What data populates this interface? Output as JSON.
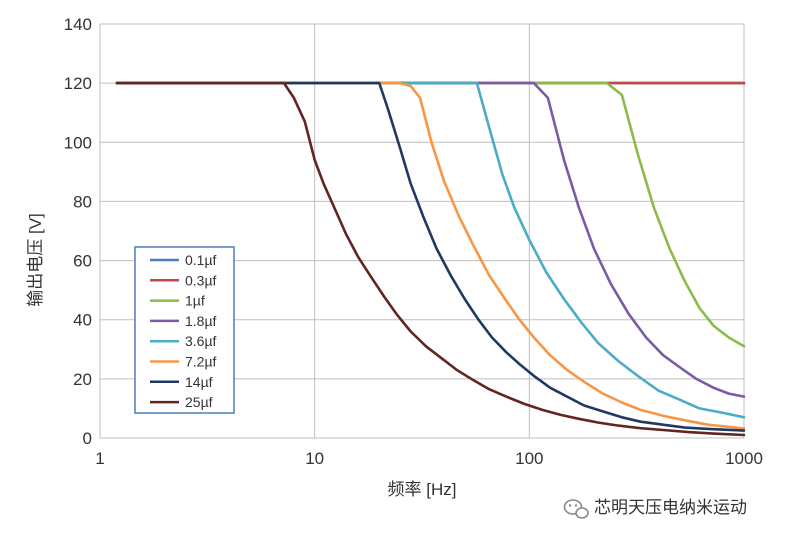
{
  "watermark": {
    "text": "芯明天压电纳米运动",
    "icon": "wechat-icon"
  },
  "chart_data": {
    "type": "line",
    "title": "",
    "xlabel": "频率 [Hz]",
    "ylabel": "输出电压 [V]",
    "x_scale": "log",
    "xlim": [
      1,
      1000
    ],
    "ylim": [
      0,
      140
    ],
    "x_ticks": [
      1,
      10,
      100,
      1000
    ],
    "x_tick_labels": [
      "1",
      "10",
      "100",
      "1000"
    ],
    "y_ticks": [
      0,
      20,
      40,
      60,
      80,
      100,
      120,
      140
    ],
    "y_tick_labels": [
      "0",
      "20",
      "40",
      "60",
      "80",
      "100",
      "120",
      "140"
    ],
    "grid": true,
    "legend_position": "bottom-left",
    "series": [
      {
        "name": "0.1µf",
        "color": "#4a7ebb",
        "points": [
          [
            1.2,
            120
          ],
          [
            1000,
            120
          ]
        ]
      },
      {
        "name": "0.3µf",
        "color": "#be4b48",
        "points": [
          [
            1.2,
            120
          ],
          [
            1000,
            120
          ]
        ]
      },
      {
        "name": "1µf",
        "color": "#8cbb49",
        "points": [
          [
            1.2,
            120
          ],
          [
            230,
            120
          ],
          [
            270,
            116
          ],
          [
            320,
            96
          ],
          [
            380,
            78
          ],
          [
            450,
            64
          ],
          [
            530,
            53
          ],
          [
            620,
            44
          ],
          [
            720,
            38
          ],
          [
            850,
            34
          ],
          [
            1000,
            31
          ]
        ]
      },
      {
        "name": "1.8µf",
        "color": "#7b5aa6",
        "points": [
          [
            1.2,
            120
          ],
          [
            105,
            120
          ],
          [
            122,
            115
          ],
          [
            145,
            94
          ],
          [
            170,
            78
          ],
          [
            200,
            64
          ],
          [
            240,
            52
          ],
          [
            290,
            42
          ],
          [
            350,
            34
          ],
          [
            420,
            28
          ],
          [
            500,
            24
          ],
          [
            600,
            20
          ],
          [
            720,
            17
          ],
          [
            850,
            15
          ],
          [
            1000,
            14
          ]
        ]
      },
      {
        "name": "3.6µf",
        "color": "#4bacc6",
        "points": [
          [
            1.2,
            120
          ],
          [
            57,
            120
          ],
          [
            65,
            105
          ],
          [
            75,
            89
          ],
          [
            85,
            78
          ],
          [
            100,
            67
          ],
          [
            120,
            56
          ],
          [
            145,
            47
          ],
          [
            175,
            39
          ],
          [
            210,
            32
          ],
          [
            260,
            26
          ],
          [
            320,
            21
          ],
          [
            400,
            16
          ],
          [
            500,
            13
          ],
          [
            620,
            10
          ],
          [
            800,
            8.5
          ],
          [
            1000,
            7
          ]
        ]
      },
      {
        "name": "7.2µf",
        "color": "#f79646",
        "points": [
          [
            1.2,
            120
          ],
          [
            25,
            120
          ],
          [
            28,
            119
          ],
          [
            31,
            115
          ],
          [
            35,
            100
          ],
          [
            40,
            87
          ],
          [
            47,
            75
          ],
          [
            55,
            65
          ],
          [
            65,
            55
          ],
          [
            77,
            47
          ],
          [
            90,
            40
          ],
          [
            105,
            34
          ],
          [
            125,
            28
          ],
          [
            150,
            23
          ],
          [
            180,
            19
          ],
          [
            220,
            15
          ],
          [
            270,
            12
          ],
          [
            330,
            9.5
          ],
          [
            420,
            7.5
          ],
          [
            530,
            6
          ],
          [
            680,
            4.5
          ],
          [
            850,
            3.8
          ],
          [
            1000,
            3.2
          ]
        ]
      },
      {
        "name": "14µf",
        "color": "#1f3864",
        "points": [
          [
            1.2,
            120
          ],
          [
            20,
            120
          ],
          [
            22,
            111
          ],
          [
            25,
            98
          ],
          [
            28,
            86
          ],
          [
            32,
            75
          ],
          [
            37,
            64
          ],
          [
            43,
            55
          ],
          [
            50,
            47
          ],
          [
            58,
            40
          ],
          [
            67,
            34
          ],
          [
            78,
            29
          ],
          [
            90,
            25
          ],
          [
            105,
            21
          ],
          [
            125,
            17
          ],
          [
            150,
            14
          ],
          [
            180,
            11
          ],
          [
            220,
            9
          ],
          [
            270,
            7
          ],
          [
            330,
            5.5
          ],
          [
            420,
            4.5
          ],
          [
            530,
            3.5
          ],
          [
            700,
            3
          ],
          [
            1000,
            2.5
          ]
        ]
      },
      {
        "name": "25µf",
        "color": "#632523",
        "points": [
          [
            1.2,
            120
          ],
          [
            7.2,
            120
          ],
          [
            8,
            115
          ],
          [
            9,
            107
          ],
          [
            10,
            94
          ],
          [
            11,
            86
          ],
          [
            12.5,
            77
          ],
          [
            14,
            69
          ],
          [
            16,
            61
          ],
          [
            18.5,
            54
          ],
          [
            21,
            48
          ],
          [
            24,
            42
          ],
          [
            28,
            36
          ],
          [
            33,
            31
          ],
          [
            39,
            27
          ],
          [
            46,
            23
          ],
          [
            55,
            19.5
          ],
          [
            65,
            16.5
          ],
          [
            78,
            14
          ],
          [
            95,
            11.5
          ],
          [
            115,
            9.5
          ],
          [
            140,
            7.8
          ],
          [
            170,
            6.5
          ],
          [
            210,
            5.2
          ],
          [
            260,
            4.2
          ],
          [
            330,
            3.3
          ],
          [
            420,
            2.7
          ],
          [
            550,
            2
          ],
          [
            720,
            1.5
          ],
          [
            1000,
            1
          ]
        ]
      }
    ]
  }
}
